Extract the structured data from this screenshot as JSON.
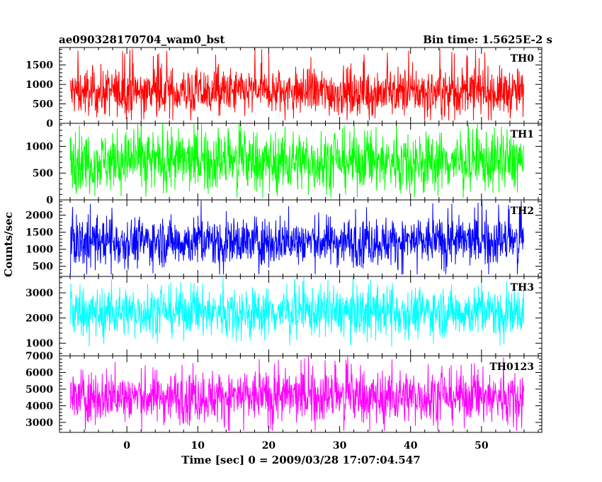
{
  "header": {
    "left": "ae090328170704_wam0_bst",
    "right": "Bin time: 1.5625E-2 s"
  },
  "chart_data": {
    "type": "line",
    "title": "ae090328170704_wam0_bst",
    "bin_time": "Bin time: 1.5625E-2 s",
    "xlabel": "Time [sec] 0 = 2009/03/28 17:07:04.547",
    "ylabel": "Counts/sec",
    "xlim": [
      -9.5,
      58.5
    ],
    "x_ticks": [
      0,
      10,
      20,
      30,
      40,
      50
    ],
    "x_data_range": [
      -8,
      56
    ],
    "panels": [
      {
        "name": "TH0",
        "color": "#ff0000",
        "ylim": [
          0,
          1950
        ],
        "y_ticks": [
          0,
          500,
          1000,
          1500
        ],
        "mean": 800,
        "typical_low": 250,
        "typical_high": 1450,
        "min": 80,
        "max": 1950
      },
      {
        "name": "TH1",
        "color": "#00ff00",
        "ylim": [
          0,
          1430
        ],
        "y_ticks": [
          0,
          500,
          1000
        ],
        "mean": 720,
        "typical_low": 200,
        "typical_high": 1300,
        "min": 40,
        "max": 1430
      },
      {
        "name": "TH2",
        "color": "#0000ff",
        "ylim": [
          200,
          2450
        ],
        "y_ticks": [
          500,
          1000,
          1500,
          2000
        ],
        "mean": 1230,
        "typical_low": 600,
        "typical_high": 2000,
        "min": 260,
        "max": 2450
      },
      {
        "name": "TH3",
        "color": "#00ffff",
        "ylim": [
          500,
          3650
        ],
        "y_ticks": [
          1000,
          2000,
          3000
        ],
        "mean": 2250,
        "typical_low": 1200,
        "typical_high": 3100,
        "min": 650,
        "max": 3650
      },
      {
        "name": "TH0123",
        "color": "#ff00ff",
        "ylim": [
          2400,
          7000
        ],
        "y_ticks": [
          3000,
          4000,
          5000,
          6000,
          7000
        ],
        "mean": 4550,
        "typical_low": 3100,
        "typical_high": 6200,
        "min": 2500,
        "max": 7000
      }
    ]
  }
}
